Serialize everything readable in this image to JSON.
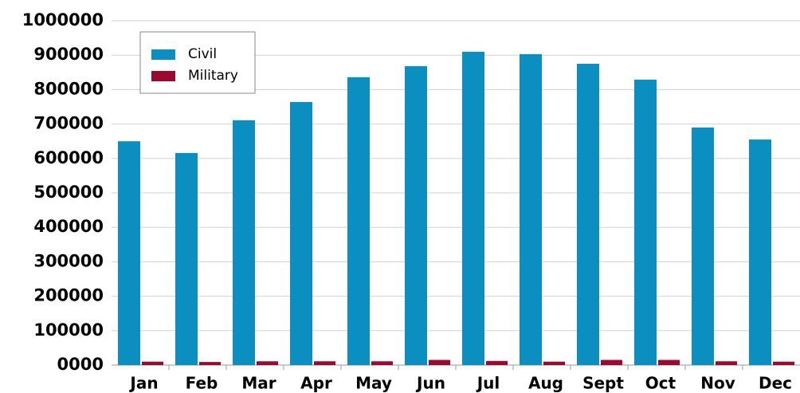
{
  "chart_data": {
    "type": "bar",
    "categories": [
      "Jan",
      "Feb",
      "Mar",
      "Apr",
      "May",
      "Jun",
      "Jul",
      "Aug",
      "Sept",
      "Oct",
      "Nov",
      "Dec"
    ],
    "series": [
      {
        "name": "Civil",
        "color": "#0a8fc0",
        "values": [
          650000,
          616000,
          711000,
          764000,
          836000,
          868000,
          910000,
          903000,
          875000,
          829000,
          690000,
          655000
        ]
      },
      {
        "name": "Military",
        "color": "#9b0a2e",
        "values": [
          10000,
          9000,
          11000,
          11000,
          11000,
          15000,
          12000,
          10000,
          15000,
          15000,
          11000,
          10000
        ]
      }
    ],
    "ylim": [
      0,
      1000000
    ],
    "yticks": [
      {
        "value": 0,
        "label": "0000"
      },
      100000,
      200000,
      300000,
      400000,
      500000,
      600000,
      700000,
      800000,
      900000,
      1000000
    ],
    "grid": true,
    "legend_position": "upper left"
  }
}
